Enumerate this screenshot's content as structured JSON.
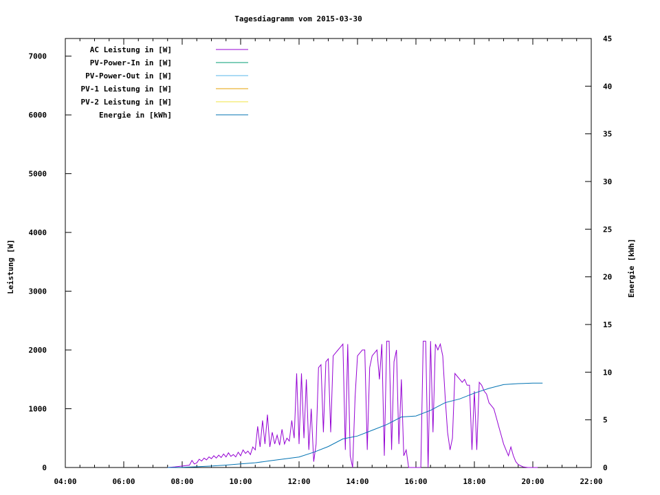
{
  "chart_data": {
    "type": "line",
    "title": "Tagesdiagramm vom 2015-03-30",
    "xlabel": "",
    "ylabel": "Leistung [W]",
    "y2label": "Energie [kWh]",
    "x_ticks": [
      "04:00",
      "06:00",
      "08:00",
      "10:00",
      "12:00",
      "14:00",
      "16:00",
      "18:00",
      "20:00",
      "22:00"
    ],
    "y_ticks": [
      "0",
      "1000",
      "2000",
      "3000",
      "4000",
      "5000",
      "6000",
      "7000"
    ],
    "y2_ticks": [
      "0",
      "5",
      "10",
      "15",
      "20",
      "25",
      "30",
      "35",
      "40",
      "45"
    ],
    "xlim": [
      "04:00",
      "22:00"
    ],
    "ylim": [
      0,
      7300
    ],
    "y2lim": [
      0,
      45
    ],
    "grid": false,
    "legend_position": "top-left",
    "series": [
      {
        "name": "AC Leistung in [W]",
        "color": "#9400d3",
        "axis": "left",
        "points": [
          [
            "07:30",
            0
          ],
          [
            "07:45",
            10
          ],
          [
            "08:00",
            25
          ],
          [
            "08:15",
            40
          ],
          [
            "08:20",
            120
          ],
          [
            "08:25",
            60
          ],
          [
            "08:30",
            80
          ],
          [
            "08:35",
            140
          ],
          [
            "08:40",
            110
          ],
          [
            "08:45",
            160
          ],
          [
            "08:50",
            130
          ],
          [
            "08:55",
            180
          ],
          [
            "09:00",
            150
          ],
          [
            "09:05",
            200
          ],
          [
            "09:10",
            160
          ],
          [
            "09:15",
            210
          ],
          [
            "09:20",
            170
          ],
          [
            "09:25",
            230
          ],
          [
            "09:30",
            180
          ],
          [
            "09:35",
            250
          ],
          [
            "09:40",
            190
          ],
          [
            "09:45",
            220
          ],
          [
            "09:50",
            180
          ],
          [
            "09:55",
            260
          ],
          [
            "10:00",
            200
          ],
          [
            "10:05",
            300
          ],
          [
            "10:10",
            240
          ],
          [
            "10:15",
            280
          ],
          [
            "10:20",
            220
          ],
          [
            "10:25",
            350
          ],
          [
            "10:30",
            300
          ],
          [
            "10:35",
            700
          ],
          [
            "10:40",
            350
          ],
          [
            "10:45",
            800
          ],
          [
            "10:50",
            400
          ],
          [
            "10:55",
            900
          ],
          [
            "11:00",
            350
          ],
          [
            "11:05",
            600
          ],
          [
            "11:10",
            400
          ],
          [
            "11:15",
            550
          ],
          [
            "11:20",
            380
          ],
          [
            "11:25",
            650
          ],
          [
            "11:30",
            400
          ],
          [
            "11:35",
            500
          ],
          [
            "11:40",
            450
          ],
          [
            "11:45",
            800
          ],
          [
            "11:50",
            500
          ],
          [
            "11:55",
            1600
          ],
          [
            "12:00",
            400
          ],
          [
            "12:05",
            1600
          ],
          [
            "12:10",
            500
          ],
          [
            "12:15",
            1500
          ],
          [
            "12:20",
            300
          ],
          [
            "12:25",
            1000
          ],
          [
            "12:30",
            100
          ],
          [
            "12:35",
            400
          ],
          [
            "12:40",
            1700
          ],
          [
            "12:45",
            1750
          ],
          [
            "12:50",
            600
          ],
          [
            "12:55",
            1800
          ],
          [
            "13:00",
            1850
          ],
          [
            "13:05",
            600
          ],
          [
            "13:10",
            1900
          ],
          [
            "13:15",
            1950
          ],
          [
            "13:20",
            2000
          ],
          [
            "13:25",
            2050
          ],
          [
            "13:30",
            2100
          ],
          [
            "13:35",
            300
          ],
          [
            "13:40",
            2100
          ],
          [
            "13:45",
            200
          ],
          [
            "13:50",
            0
          ],
          [
            "13:55",
            1200
          ],
          [
            "14:00",
            1900
          ],
          [
            "14:05",
            1950
          ],
          [
            "14:10",
            2000
          ],
          [
            "14:15",
            2000
          ],
          [
            "14:20",
            300
          ],
          [
            "14:25",
            1700
          ],
          [
            "14:30",
            1900
          ],
          [
            "14:35",
            1950
          ],
          [
            "14:40",
            2000
          ],
          [
            "14:45",
            1500
          ],
          [
            "14:50",
            2100
          ],
          [
            "14:55",
            200
          ],
          [
            "15:00",
            2150
          ],
          [
            "15:05",
            2150
          ],
          [
            "15:10",
            300
          ],
          [
            "15:15",
            1800
          ],
          [
            "15:20",
            2000
          ],
          [
            "15:25",
            400
          ],
          [
            "15:30",
            1500
          ],
          [
            "15:35",
            200
          ],
          [
            "15:40",
            300
          ],
          [
            "15:45",
            0
          ],
          [
            "15:50",
            0
          ],
          [
            "16:00",
            0
          ],
          [
            "16:10",
            0
          ],
          [
            "16:15",
            2150
          ],
          [
            "16:20",
            2150
          ],
          [
            "16:25",
            0
          ],
          [
            "16:30",
            2150
          ],
          [
            "16:35",
            600
          ],
          [
            "16:40",
            2100
          ],
          [
            "16:45",
            2000
          ],
          [
            "16:50",
            2100
          ],
          [
            "16:55",
            1900
          ],
          [
            "17:00",
            1200
          ],
          [
            "17:05",
            600
          ],
          [
            "17:10",
            300
          ],
          [
            "17:15",
            500
          ],
          [
            "17:20",
            1600
          ],
          [
            "17:25",
            1550
          ],
          [
            "17:30",
            1500
          ],
          [
            "17:35",
            1450
          ],
          [
            "17:40",
            1500
          ],
          [
            "17:45",
            1400
          ],
          [
            "17:50",
            1400
          ],
          [
            "17:55",
            300
          ],
          [
            "18:00",
            1300
          ],
          [
            "18:05",
            300
          ],
          [
            "18:10",
            1450
          ],
          [
            "18:15",
            1400
          ],
          [
            "18:20",
            1300
          ],
          [
            "18:25",
            1250
          ],
          [
            "18:30",
            1100
          ],
          [
            "18:35",
            1050
          ],
          [
            "18:40",
            1000
          ],
          [
            "18:45",
            850
          ],
          [
            "18:50",
            700
          ],
          [
            "18:55",
            550
          ],
          [
            "19:00",
            400
          ],
          [
            "19:05",
            300
          ],
          [
            "19:10",
            200
          ],
          [
            "19:15",
            350
          ],
          [
            "19:20",
            200
          ],
          [
            "19:25",
            100
          ],
          [
            "19:30",
            50
          ],
          [
            "19:40",
            10
          ],
          [
            "19:50",
            0
          ],
          [
            "20:10",
            0
          ]
        ]
      },
      {
        "name": "PV-Power-In in [W]",
        "color": "#009e73",
        "axis": "left",
        "points": []
      },
      {
        "name": "PV-Power-Out in [W]",
        "color": "#56b4e9",
        "axis": "left",
        "points": []
      },
      {
        "name": "PV-1 Leistung in [W]",
        "color": "#e69f00",
        "axis": "left",
        "points": []
      },
      {
        "name": "PV-2 Leistung in [W]",
        "color": "#f0e442",
        "axis": "left",
        "points": []
      },
      {
        "name": "Energie in [kWh]",
        "color": "#0072b2",
        "axis": "right",
        "points": [
          [
            "07:30",
            0
          ],
          [
            "08:00",
            0.02
          ],
          [
            "08:30",
            0.08
          ],
          [
            "09:00",
            0.15
          ],
          [
            "09:30",
            0.25
          ],
          [
            "10:00",
            0.38
          ],
          [
            "10:30",
            0.5
          ],
          [
            "11:00",
            0.7
          ],
          [
            "11:30",
            0.9
          ],
          [
            "12:00",
            1.1
          ],
          [
            "12:30",
            1.6
          ],
          [
            "13:00",
            2.2
          ],
          [
            "13:30",
            3.0
          ],
          [
            "14:00",
            3.3
          ],
          [
            "14:30",
            3.9
          ],
          [
            "15:00",
            4.5
          ],
          [
            "15:30",
            5.3
          ],
          [
            "16:00",
            5.4
          ],
          [
            "16:30",
            6.0
          ],
          [
            "17:00",
            6.8
          ],
          [
            "17:30",
            7.2
          ],
          [
            "18:00",
            7.8
          ],
          [
            "18:30",
            8.3
          ],
          [
            "19:00",
            8.7
          ],
          [
            "19:30",
            8.8
          ],
          [
            "20:00",
            8.85
          ],
          [
            "20:20",
            8.85
          ]
        ]
      }
    ]
  }
}
